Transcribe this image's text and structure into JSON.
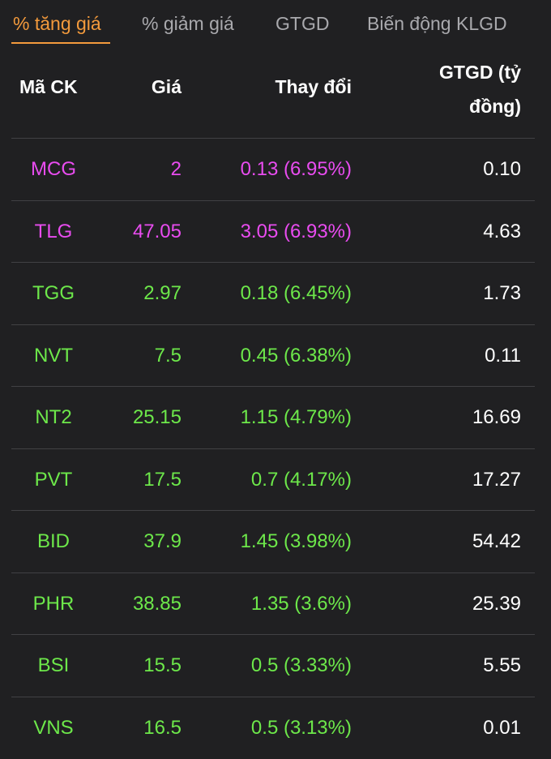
{
  "tabs": [
    {
      "label": "% tăng giá",
      "active": true
    },
    {
      "label": "% giảm giá",
      "active": false
    },
    {
      "label": "GTGD",
      "active": false
    },
    {
      "label": "Biến động KLGD",
      "active": false
    }
  ],
  "table": {
    "headers": {
      "symbol": "Mã CK",
      "price": "Giá",
      "change": "Thay đổi",
      "value_line1": "GTGD (tỷ",
      "value_line2": "đồng)"
    },
    "colors": {
      "ceiling": "#e94cf0",
      "increase": "#6de84a",
      "value": "#ffffff",
      "accent": "#f39a3c"
    },
    "rows": [
      {
        "symbol": "MCG",
        "price": "2",
        "change": "0.13 (6.95%)",
        "value": "0.10",
        "status": "ceiling"
      },
      {
        "symbol": "TLG",
        "price": "47.05",
        "change": "3.05 (6.93%)",
        "value": "4.63",
        "status": "ceiling"
      },
      {
        "symbol": "TGG",
        "price": "2.97",
        "change": "0.18 (6.45%)",
        "value": "1.73",
        "status": "increase"
      },
      {
        "symbol": "NVT",
        "price": "7.5",
        "change": "0.45 (6.38%)",
        "value": "0.11",
        "status": "increase"
      },
      {
        "symbol": "NT2",
        "price": "25.15",
        "change": "1.15 (4.79%)",
        "value": "16.69",
        "status": "increase"
      },
      {
        "symbol": "PVT",
        "price": "17.5",
        "change": "0.7 (4.17%)",
        "value": "17.27",
        "status": "increase"
      },
      {
        "symbol": "BID",
        "price": "37.9",
        "change": "1.45 (3.98%)",
        "value": "54.42",
        "status": "increase"
      },
      {
        "symbol": "PHR",
        "price": "38.85",
        "change": "1.35 (3.6%)",
        "value": "25.39",
        "status": "increase"
      },
      {
        "symbol": "BSI",
        "price": "15.5",
        "change": "0.5 (3.33%)",
        "value": "5.55",
        "status": "increase"
      },
      {
        "symbol": "VNS",
        "price": "16.5",
        "change": "0.5 (3.13%)",
        "value": "0.01",
        "status": "increase"
      }
    ]
  }
}
